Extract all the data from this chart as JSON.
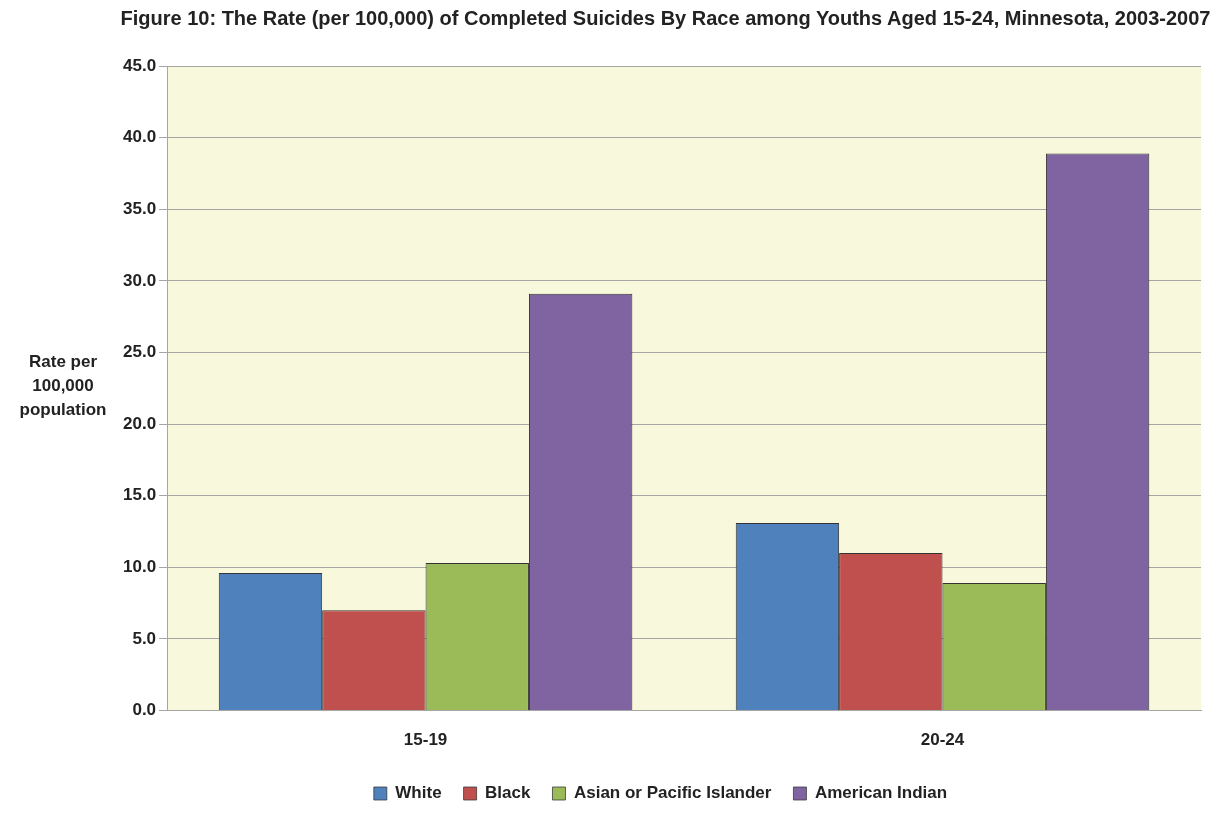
{
  "chart_data": {
    "type": "bar",
    "title": "Figure 10: The Rate (per 100,000) of Completed Suicides By Race among Youths Aged 15-24, Minnesota, 2003-2007",
    "ylabel": "Rate per 100,000 population",
    "categories": [
      "15-19",
      "20-24"
    ],
    "series": [
      {
        "name": "White",
        "color": "#4f81bd",
        "values": [
          9.6,
          13.1
        ]
      },
      {
        "name": "Black",
        "color": "#c0504d",
        "values": [
          7.0,
          11.0
        ]
      },
      {
        "name": "Asian or Pacific Islander",
        "color": "#9bbb59",
        "values": [
          10.3,
          8.9
        ]
      },
      {
        "name": "American Indian",
        "color": "#8064a2",
        "values": [
          29.1,
          38.9
        ]
      }
    ],
    "ylim": [
      0,
      45
    ],
    "yticks": [
      {
        "value": 0,
        "label": "0.0"
      },
      {
        "value": 5,
        "label": "5.0"
      },
      {
        "value": 10,
        "label": "10.0"
      },
      {
        "value": 15,
        "label": "15.0"
      },
      {
        "value": 20,
        "label": "20.0"
      },
      {
        "value": 25,
        "label": "25.0"
      },
      {
        "value": 30,
        "label": "30.0"
      },
      {
        "value": 35,
        "label": "35.0"
      },
      {
        "value": 40,
        "label": "40.0"
      },
      {
        "value": 45,
        "label": "45.0"
      }
    ],
    "grid": "y",
    "legend": "bottom"
  }
}
